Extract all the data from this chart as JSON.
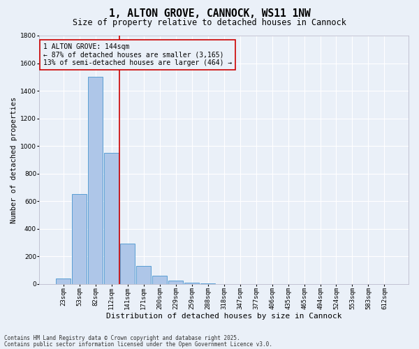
{
  "title": "1, ALTON GROVE, CANNOCK, WS11 1NW",
  "subtitle": "Size of property relative to detached houses in Cannock",
  "xlabel": "Distribution of detached houses by size in Cannock",
  "ylabel": "Number of detached properties",
  "footnote1": "Contains HM Land Registry data © Crown copyright and database right 2025.",
  "footnote2": "Contains public sector information licensed under the Open Government Licence v3.0.",
  "bar_labels": [
    "23sqm",
    "53sqm",
    "82sqm",
    "112sqm",
    "141sqm",
    "171sqm",
    "200sqm",
    "229sqm",
    "259sqm",
    "288sqm",
    "318sqm",
    "347sqm",
    "377sqm",
    "406sqm",
    "435sqm",
    "465sqm",
    "494sqm",
    "524sqm",
    "553sqm",
    "583sqm",
    "612sqm"
  ],
  "bar_values": [
    40,
    650,
    1500,
    950,
    295,
    130,
    60,
    25,
    10,
    5,
    0,
    0,
    0,
    0,
    0,
    0,
    0,
    0,
    0,
    0,
    0
  ],
  "bar_color": "#aec6e8",
  "bar_edgecolor": "#5a9fd4",
  "ylim": [
    0,
    1800
  ],
  "yticks": [
    0,
    200,
    400,
    600,
    800,
    1000,
    1200,
    1400,
    1600,
    1800
  ],
  "property_line_x": 4,
  "annotation_title": "1 ALTON GROVE: 144sqm",
  "annotation_line1": "← 87% of detached houses are smaller (3,165)",
  "annotation_line2": "13% of semi-detached houses are larger (464) →",
  "vline_color": "#cc0000",
  "annotation_box_edgecolor": "#cc0000",
  "background_color": "#eaf0f8",
  "grid_color": "#ffffff",
  "title_fontsize": 10.5,
  "subtitle_fontsize": 8.5,
  "xlabel_fontsize": 8,
  "ylabel_fontsize": 7.5,
  "tick_fontsize": 6.5,
  "annotation_fontsize": 7,
  "footnote_fontsize": 5.5
}
